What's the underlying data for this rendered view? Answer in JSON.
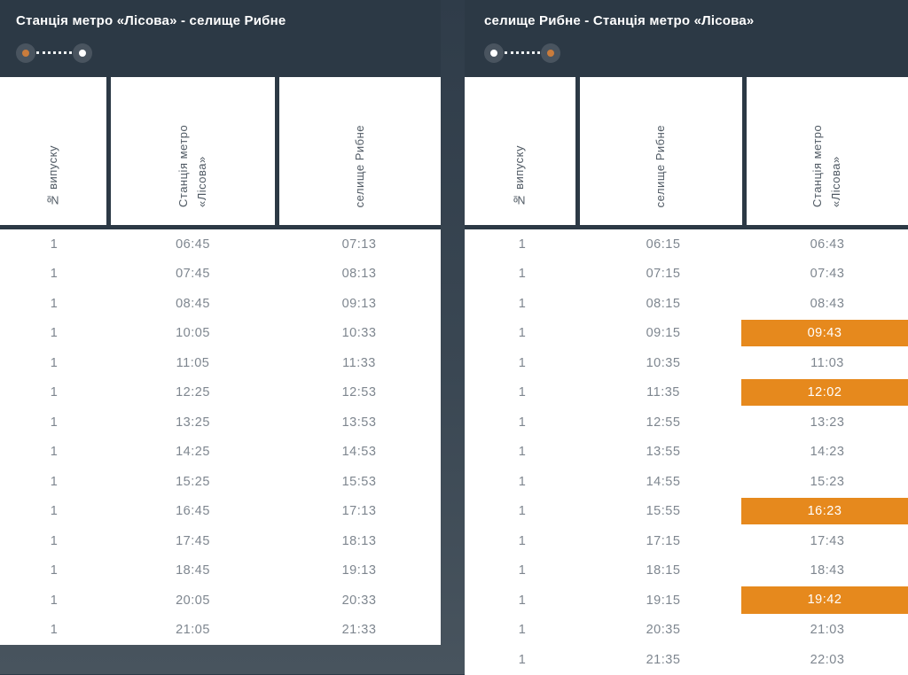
{
  "colors": {
    "header_background": "#2c3945",
    "page_background_top": "#2f3c49",
    "page_background_bottom": "#48545e",
    "table_background": "#ffffff",
    "body_text": "#7e868f",
    "column_header_text": "#4f5963",
    "highlight_background": "#e6891d",
    "highlight_text": "#ffffff",
    "indicator_circle": "#49545f"
  },
  "indicator_colors": {
    "orange": "#c97c3c",
    "white": "#ffffff"
  },
  "panels": [
    {
      "title": "Станція метро «Лісова» - селище Рибне",
      "indicator": {
        "start": "orange",
        "end": "white"
      },
      "columns": [
        "№ випуску",
        "Станція метро «Лісова»",
        "селище Рибне"
      ],
      "rows": [
        {
          "trip": "1",
          "dep": "06:45",
          "arr": "07:13",
          "highlight": false
        },
        {
          "trip": "1",
          "dep": "07:45",
          "arr": "08:13",
          "highlight": false
        },
        {
          "trip": "1",
          "dep": "08:45",
          "arr": "09:13",
          "highlight": false
        },
        {
          "trip": "1",
          "dep": "10:05",
          "arr": "10:33",
          "highlight": false
        },
        {
          "trip": "1",
          "dep": "11:05",
          "arr": "11:33",
          "highlight": false
        },
        {
          "trip": "1",
          "dep": "12:25",
          "arr": "12:53",
          "highlight": false
        },
        {
          "trip": "1",
          "dep": "13:25",
          "arr": "13:53",
          "highlight": false
        },
        {
          "trip": "1",
          "dep": "14:25",
          "arr": "14:53",
          "highlight": false
        },
        {
          "trip": "1",
          "dep": "15:25",
          "arr": "15:53",
          "highlight": false
        },
        {
          "trip": "1",
          "dep": "16:45",
          "arr": "17:13",
          "highlight": false
        },
        {
          "trip": "1",
          "dep": "17:45",
          "arr": "18:13",
          "highlight": false
        },
        {
          "trip": "1",
          "dep": "18:45",
          "arr": "19:13",
          "highlight": false
        },
        {
          "trip": "1",
          "dep": "20:05",
          "arr": "20:33",
          "highlight": false
        },
        {
          "trip": "1",
          "dep": "21:05",
          "arr": "21:33",
          "highlight": false
        }
      ]
    },
    {
      "title": "селище Рибне - Станція метро «Лісова»",
      "indicator": {
        "start": "white",
        "end": "orange"
      },
      "columns": [
        "№ випуску",
        "селище Рибне",
        "Станція метро «Лісова»"
      ],
      "rows": [
        {
          "trip": "1",
          "dep": "06:15",
          "arr": "06:43",
          "highlight": false
        },
        {
          "trip": "1",
          "dep": "07:15",
          "arr": "07:43",
          "highlight": false
        },
        {
          "trip": "1",
          "dep": "08:15",
          "arr": "08:43",
          "highlight": false
        },
        {
          "trip": "1",
          "dep": "09:15",
          "arr": "09:43",
          "highlight": true
        },
        {
          "trip": "1",
          "dep": "10:35",
          "arr": "11:03",
          "highlight": false
        },
        {
          "trip": "1",
          "dep": "11:35",
          "arr": "12:02",
          "highlight": true
        },
        {
          "trip": "1",
          "dep": "12:55",
          "arr": "13:23",
          "highlight": false
        },
        {
          "trip": "1",
          "dep": "13:55",
          "arr": "14:23",
          "highlight": false
        },
        {
          "trip": "1",
          "dep": "14:55",
          "arr": "15:23",
          "highlight": false
        },
        {
          "trip": "1",
          "dep": "15:55",
          "arr": "16:23",
          "highlight": true
        },
        {
          "trip": "1",
          "dep": "17:15",
          "arr": "17:43",
          "highlight": false
        },
        {
          "trip": "1",
          "dep": "18:15",
          "arr": "18:43",
          "highlight": false
        },
        {
          "trip": "1",
          "dep": "19:15",
          "arr": "19:42",
          "highlight": true
        },
        {
          "trip": "1",
          "dep": "20:35",
          "arr": "21:03",
          "highlight": false
        },
        {
          "trip": "1",
          "dep": "21:35",
          "arr": "22:03",
          "highlight": false
        }
      ]
    }
  ]
}
